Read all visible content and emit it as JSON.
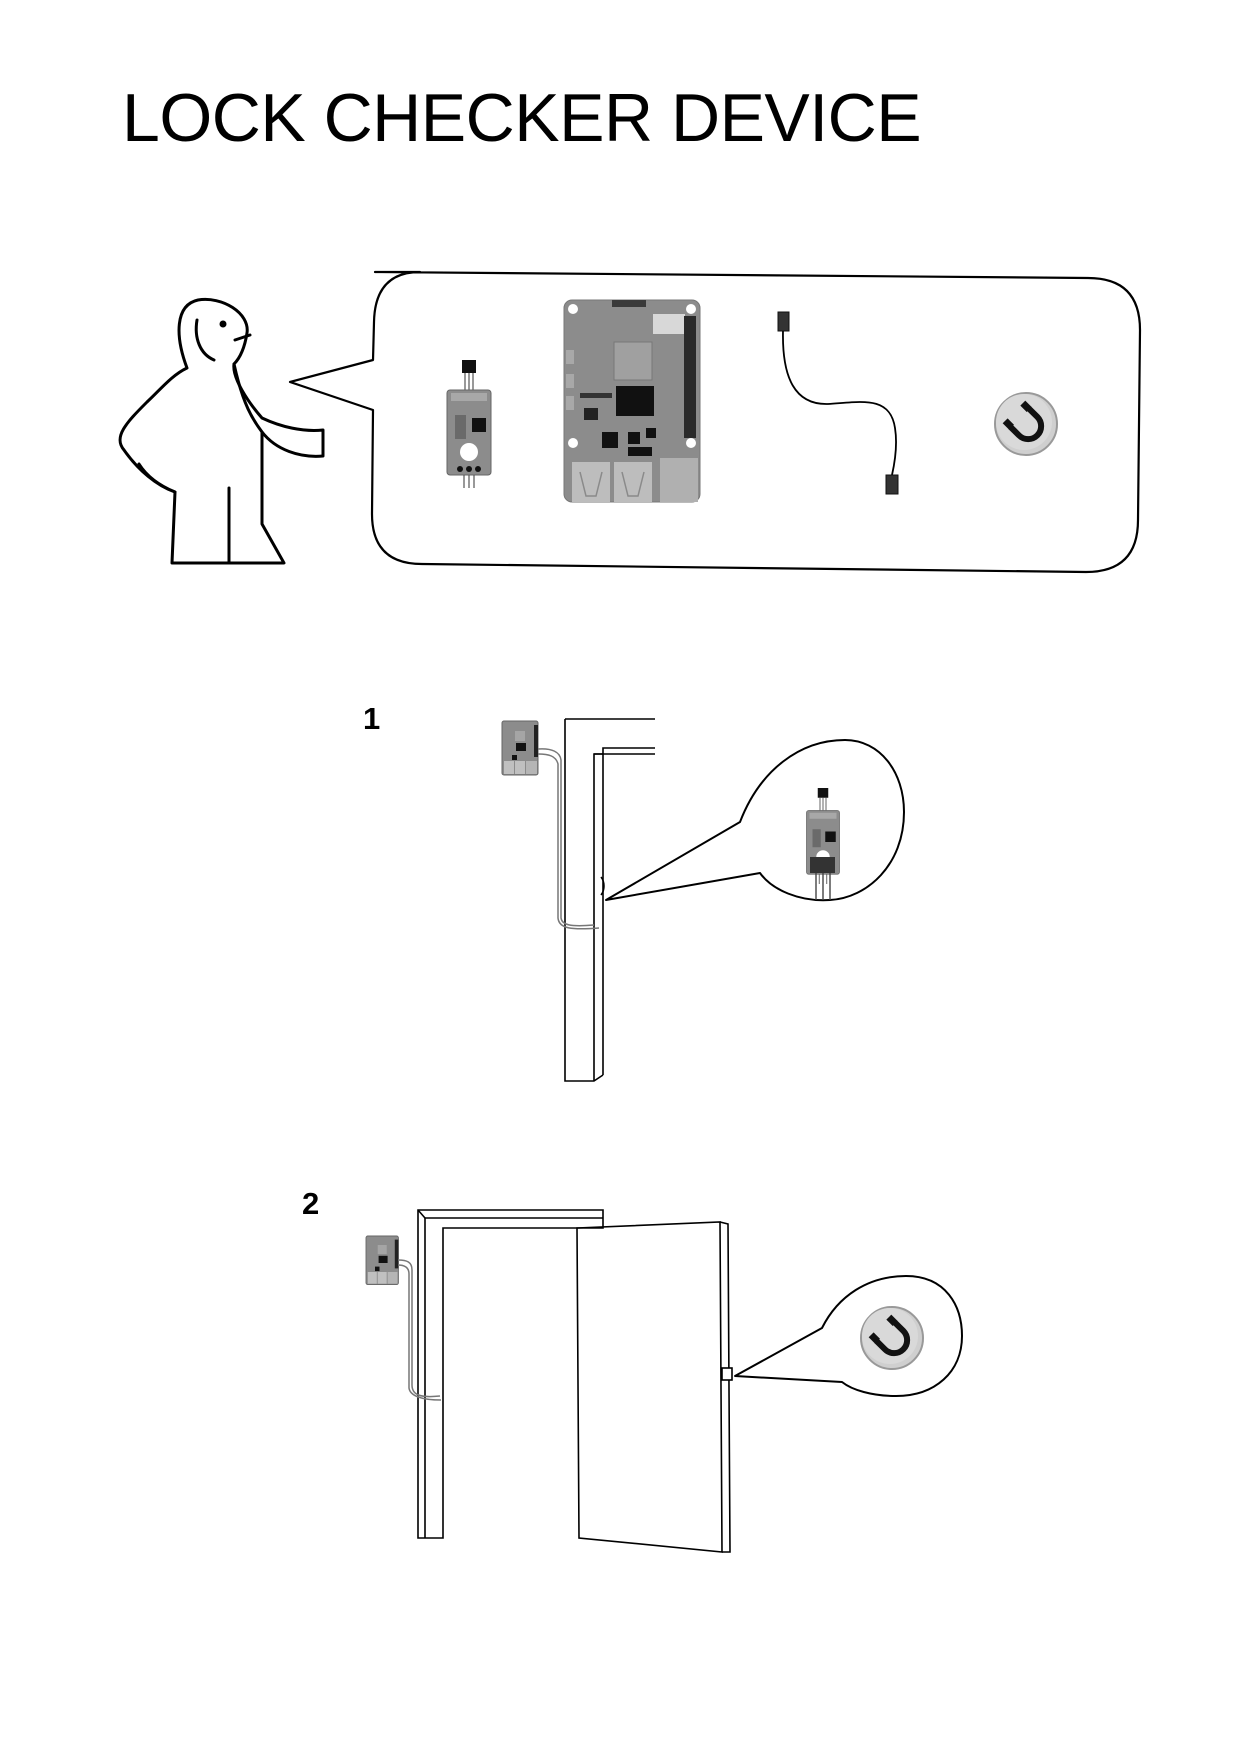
{
  "title": "LOCK CHECKER DEVICE",
  "steps": [
    {
      "number": "1"
    },
    {
      "number": "2"
    }
  ],
  "colors": {
    "line": "#000000",
    "board": "#8c8c8c",
    "board_light": "#b5b5b5",
    "chip": "#111111",
    "magnet_fill": "#cfcfcf"
  },
  "icons": {
    "person": "pointing-person-icon",
    "sensor": "hall-sensor-module-icon",
    "board": "single-board-computer-icon",
    "cable": "jumper-cable-icon",
    "magnet": "magnet-icon"
  }
}
